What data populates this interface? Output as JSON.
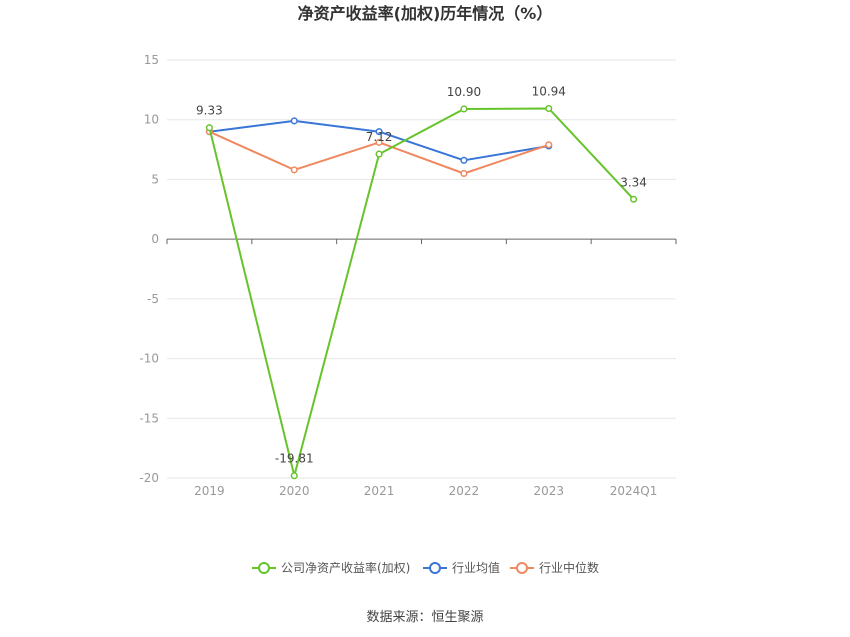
{
  "chart_data": {
    "type": "line",
    "title": "净资产收益率(加权)历年情况（%）",
    "categories": [
      "2019",
      "2020",
      "2021",
      "2022",
      "2023",
      "2024Q1"
    ],
    "ylim": [
      -20,
      15
    ],
    "yticks": [
      "15",
      "10",
      "5",
      "0",
      "-5",
      "-10",
      "-15",
      "-20"
    ],
    "grid": true,
    "legend_position": "bottom",
    "series": [
      {
        "name": "公司净资产收益率(加权)",
        "color": "#66c42a",
        "values": [
          9.33,
          -19.81,
          7.12,
          10.9,
          10.94,
          3.34
        ],
        "labels": [
          "9.33",
          "-19.81",
          "7.12",
          "10.90",
          "10.94",
          "3.34"
        ]
      },
      {
        "name": "行业均值",
        "color": "#3a75d8",
        "values": [
          9.0,
          9.9,
          9.0,
          6.6,
          7.8,
          null
        ]
      },
      {
        "name": "行业中位数",
        "color": "#f08860",
        "values": [
          9.0,
          5.8,
          8.1,
          5.5,
          7.9,
          null
        ]
      }
    ]
  },
  "source": "数据来源：恒生聚源"
}
